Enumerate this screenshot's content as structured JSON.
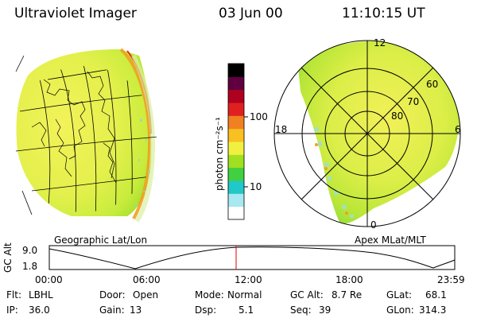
{
  "header": {
    "instrument": "Ultraviolet Imager",
    "date": "03 Jun 00",
    "time": "11:10:15 UT"
  },
  "colorbar": {
    "label": "photon cm⁻²s⁻¹",
    "ticks": [
      "100",
      "10"
    ],
    "stops": [
      "#ffffff",
      "#a8e8f0",
      "#20c8c8",
      "#40d040",
      "#a0e020",
      "#f0f040",
      "#f8c020",
      "#f08020",
      "#e02020",
      "#b00020",
      "#600040",
      "#000000"
    ]
  },
  "left_map": {
    "caption": "Geographic Lat/Lon"
  },
  "right_map": {
    "caption": "Apex MLat/MLT",
    "mlt_labels": {
      "top": "12",
      "left": "18",
      "right": "6",
      "bottom": "0"
    },
    "lat_labels": [
      "60",
      "70",
      "80"
    ]
  },
  "timeline": {
    "axis_label": "GC Alt",
    "y_ticks": [
      "9.0",
      "1.8"
    ],
    "x_ticks": [
      "00:00",
      "06:00",
      "12:00",
      "18:00",
      "23:59"
    ],
    "marker_time": "11:10"
  },
  "info": {
    "flt_label": "Flt:",
    "flt_value": "LBHL",
    "ip_label": "IP:",
    "ip_value": "36.0",
    "door_label": "Door:",
    "door_value": "Open",
    "gain_label": "Gain:",
    "gain_value": "13",
    "mode_label": "Mode:",
    "mode_value": "Normal",
    "dsp_label": "Dsp:",
    "dsp_value": "5.1",
    "gcalt_label": "GC Alt:",
    "gcalt_value": "8.7 Re",
    "seq_label": "Seq:",
    "seq_value": "39",
    "glat_label": "GLat:",
    "glat_value": "68.1",
    "glon_label": "GLon:",
    "glon_value": "314.3"
  }
}
